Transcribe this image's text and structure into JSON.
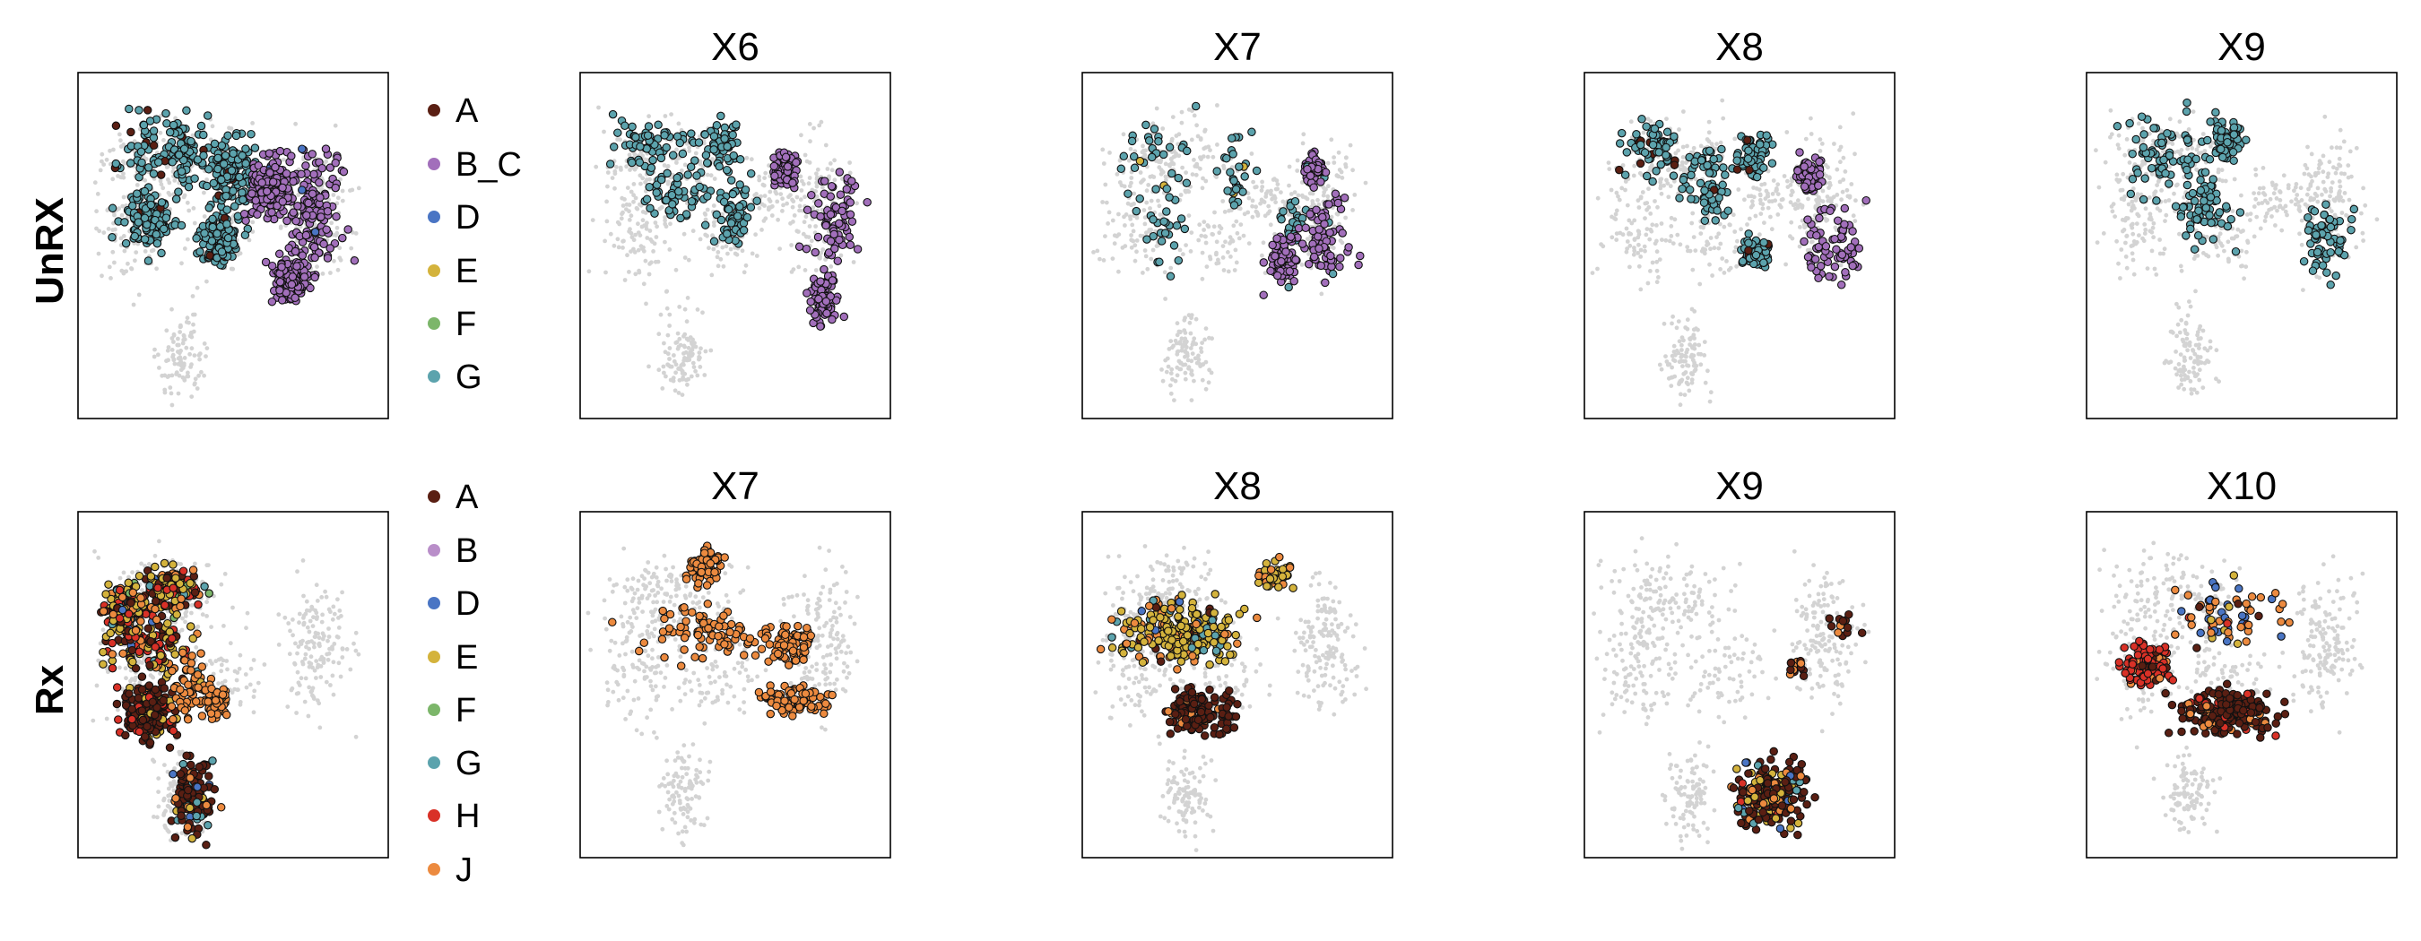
{
  "figure": {
    "rows": [
      {
        "label": "UnRX",
        "legend": [
          {
            "label": "A",
            "color": "#5a1f13"
          },
          {
            "label": "B_C",
            "color": "#a26fbb"
          },
          {
            "label": "D",
            "color": "#4a75c4"
          },
          {
            "label": "E",
            "color": "#d4b33c"
          },
          {
            "label": "F",
            "color": "#7cb66a"
          },
          {
            "label": "G",
            "color": "#5ca3ad"
          }
        ],
        "panels": [
          {
            "title": "",
            "highlight": "unrx_all"
          },
          {
            "title": "X6",
            "highlight": "unrx_x6"
          },
          {
            "title": "X7",
            "highlight": "unrx_x7"
          },
          {
            "title": "X8",
            "highlight": "unrx_x8"
          },
          {
            "title": "X9",
            "highlight": "unrx_x9"
          }
        ]
      },
      {
        "label": "Rx",
        "legend": [
          {
            "label": "A",
            "color": "#5a1f13"
          },
          {
            "label": "B",
            "color": "#b98ec9"
          },
          {
            "label": "D",
            "color": "#4a75c4"
          },
          {
            "label": "E",
            "color": "#d4b33c"
          },
          {
            "label": "F",
            "color": "#7cb66a"
          },
          {
            "label": "G",
            "color": "#5ca3ad"
          },
          {
            "label": "H",
            "color": "#d93127"
          },
          {
            "label": "J",
            "color": "#ec8a3f"
          }
        ],
        "panels": [
          {
            "title": "",
            "highlight": "rx_all"
          },
          {
            "title": "X7",
            "highlight": "rx_x7"
          },
          {
            "title": "X8",
            "highlight": "rx_x8"
          },
          {
            "title": "X9",
            "highlight": "rx_x9"
          },
          {
            "title": "X10",
            "highlight": "rx_x10"
          }
        ]
      }
    ],
    "background_color": "#d3d3d3"
  },
  "chart_data": {
    "type": "scatter",
    "title": "",
    "xlabel": "",
    "ylabel": "",
    "axis_ticks": false,
    "grid": false,
    "legend_placement": "right of first column",
    "background_point_color": "#d3d3d3",
    "row_labels": [
      "UnRX",
      "Rx"
    ],
    "panel_titles": [
      [
        "",
        "X6",
        "X7",
        "X8",
        "X9"
      ],
      [
        "",
        "X7",
        "X8",
        "X9",
        "X10"
      ]
    ],
    "series": [
      {
        "row": "UnRX",
        "categories": [
          "A",
          "B_C",
          "D",
          "E",
          "F",
          "G"
        ]
      },
      {
        "row": "Rx",
        "categories": [
          "A",
          "B",
          "D",
          "E",
          "F",
          "G",
          "H",
          "J"
        ]
      }
    ]
  }
}
